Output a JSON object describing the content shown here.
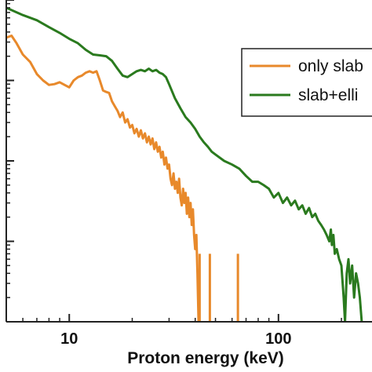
{
  "chart_data": {
    "type": "line",
    "xlabel": "Proton energy (keV)",
    "ylabel": "",
    "x_scale": "log",
    "y_scale": "log",
    "xlim": [
      5,
      280
    ],
    "ylim": [
      0.001,
      10
    ],
    "x_ticks": [
      10,
      100
    ],
    "x_tick_labels": [
      "10",
      "100"
    ],
    "y_ticks": [
      0.01,
      0.1,
      1,
      10
    ],
    "grid": false,
    "legend_position": "top-right",
    "legend": [
      "only slab",
      "slab+elli"
    ],
    "series": [
      {
        "name": "only slab",
        "color": "#e8892b",
        "points": [
          [
            5.0,
            3.4
          ],
          [
            5.3,
            3.6
          ],
          [
            5.6,
            2.9
          ],
          [
            6.0,
            2.1
          ],
          [
            6.5,
            1.7
          ],
          [
            7.0,
            1.2
          ],
          [
            7.5,
            1.0
          ],
          [
            8.0,
            0.88
          ],
          [
            8.5,
            0.9
          ],
          [
            9.0,
            0.95
          ],
          [
            9.5,
            0.88
          ],
          [
            10.0,
            0.82
          ],
          [
            10.5,
            1.0
          ],
          [
            11.0,
            1.1
          ],
          [
            11.5,
            1.15
          ],
          [
            12.0,
            1.25
          ],
          [
            12.5,
            1.3
          ],
          [
            13.0,
            1.25
          ],
          [
            13.5,
            1.3
          ],
          [
            14.0,
            1.0
          ],
          [
            14.5,
            0.75
          ],
          [
            15.0,
            0.72
          ],
          [
            15.5,
            0.7
          ],
          [
            16.0,
            0.55
          ],
          [
            16.5,
            0.48
          ],
          [
            17.0,
            0.42
          ],
          [
            17.5,
            0.35
          ],
          [
            18.0,
            0.4
          ],
          [
            18.5,
            0.3
          ],
          [
            19.0,
            0.33
          ],
          [
            19.5,
            0.26
          ],
          [
            20.0,
            0.28
          ],
          [
            20.5,
            0.22
          ],
          [
            21.0,
            0.25
          ],
          [
            21.5,
            0.2
          ],
          [
            22.0,
            0.24
          ],
          [
            22.5,
            0.19
          ],
          [
            23.0,
            0.22
          ],
          [
            23.5,
            0.17
          ],
          [
            24.0,
            0.2
          ],
          [
            24.5,
            0.16
          ],
          [
            25.0,
            0.19
          ],
          [
            25.5,
            0.14
          ],
          [
            26.0,
            0.17
          ],
          [
            26.5,
            0.13
          ],
          [
            27.0,
            0.15
          ],
          [
            27.5,
            0.11
          ],
          [
            28.0,
            0.13
          ],
          [
            28.5,
            0.09
          ],
          [
            29.0,
            0.11
          ],
          [
            29.5,
            0.08
          ],
          [
            30.0,
            0.09
          ],
          [
            30.5,
            0.06
          ],
          [
            31.0,
            0.05
          ],
          [
            31.5,
            0.07
          ],
          [
            32.0,
            0.045
          ],
          [
            32.5,
            0.055
          ],
          [
            33.0,
            0.04
          ],
          [
            33.5,
            0.06
          ],
          [
            34.0,
            0.035
          ],
          [
            34.5,
            0.028
          ],
          [
            35.0,
            0.045
          ],
          [
            35.5,
            0.03
          ],
          [
            36.0,
            0.04
          ],
          [
            36.5,
            0.022
          ],
          [
            37.0,
            0.035
          ],
          [
            37.5,
            0.02
          ],
          [
            38.0,
            0.03
          ],
          [
            38.5,
            0.016
          ],
          [
            39.0,
            0.025
          ],
          [
            39.5,
            0.012
          ],
          [
            40.0,
            0.008
          ],
          [
            40.5,
            0.012
          ],
          [
            41.0,
            0.004
          ],
          [
            41.5,
            0.001
          ]
        ],
        "spikes": [
          [
            42.0,
            0.007
          ],
          [
            47.0,
            0.007
          ],
          [
            64.0,
            0.007
          ]
        ]
      },
      {
        "name": "slab+elli",
        "color": "#2a7a1e",
        "points": [
          [
            5.0,
            8.0
          ],
          [
            6.0,
            6.5
          ],
          [
            7.0,
            5.6
          ],
          [
            8.0,
            4.6
          ],
          [
            9.0,
            3.9
          ],
          [
            10.0,
            3.3
          ],
          [
            11.0,
            2.9
          ],
          [
            12.0,
            2.4
          ],
          [
            13.0,
            2.1
          ],
          [
            14.0,
            2.05
          ],
          [
            15.0,
            2.0
          ],
          [
            16.0,
            1.75
          ],
          [
            17.0,
            1.4
          ],
          [
            18.0,
            1.15
          ],
          [
            19.0,
            1.1
          ],
          [
            20.0,
            1.2
          ],
          [
            21.0,
            1.3
          ],
          [
            22.0,
            1.35
          ],
          [
            23.0,
            1.3
          ],
          [
            24.0,
            1.4
          ],
          [
            25.0,
            1.3
          ],
          [
            26.0,
            1.35
          ],
          [
            27.0,
            1.25
          ],
          [
            28.0,
            1.2
          ],
          [
            29.0,
            1.1
          ],
          [
            30.0,
            0.9
          ],
          [
            32.0,
            0.6
          ],
          [
            34.0,
            0.45
          ],
          [
            36.0,
            0.35
          ],
          [
            38.0,
            0.3
          ],
          [
            40.0,
            0.25
          ],
          [
            42.0,
            0.2
          ],
          [
            44.0,
            0.17
          ],
          [
            46.0,
            0.15
          ],
          [
            48.0,
            0.13
          ],
          [
            50.0,
            0.12
          ],
          [
            55.0,
            0.1
          ],
          [
            60.0,
            0.09
          ],
          [
            65.0,
            0.08
          ],
          [
            70.0,
            0.065
          ],
          [
            75.0,
            0.055
          ],
          [
            80.0,
            0.055
          ],
          [
            85.0,
            0.05
          ],
          [
            90.0,
            0.045
          ],
          [
            95.0,
            0.035
          ],
          [
            100.0,
            0.04
          ],
          [
            105.0,
            0.03
          ],
          [
            110.0,
            0.035
          ],
          [
            115.0,
            0.028
          ],
          [
            120.0,
            0.032
          ],
          [
            125.0,
            0.025
          ],
          [
            130.0,
            0.028
          ],
          [
            135.0,
            0.022
          ],
          [
            140.0,
            0.026
          ],
          [
            145.0,
            0.02
          ],
          [
            150.0,
            0.022
          ],
          [
            155.0,
            0.018
          ],
          [
            160.0,
            0.016
          ],
          [
            165.0,
            0.014
          ],
          [
            170.0,
            0.012
          ],
          [
            175.0,
            0.01
          ],
          [
            178.0,
            0.014
          ],
          [
            180.0,
            0.009
          ],
          [
            183.0,
            0.012
          ],
          [
            186.0,
            0.007
          ],
          [
            190.0,
            0.008
          ],
          [
            195.0,
            0.006
          ],
          [
            200.0,
            0.005
          ],
          [
            205.0,
            0.002
          ],
          [
            208.0,
            0.001
          ],
          [
            212.0,
            0.004
          ],
          [
            216.0,
            0.006
          ],
          [
            220.0,
            0.003
          ],
          [
            225.0,
            0.005
          ],
          [
            230.0,
            0.002
          ],
          [
            235.0,
            0.004
          ],
          [
            240.0,
            0.003
          ],
          [
            245.0,
            0.002
          ],
          [
            250.0,
            0.001
          ]
        ]
      }
    ]
  }
}
